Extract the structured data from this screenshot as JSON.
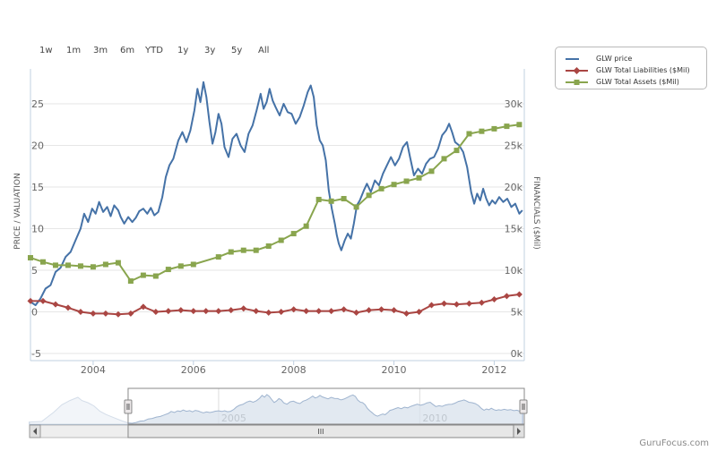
{
  "range_selector": {
    "buttons": [
      "1w",
      "1m",
      "3m",
      "6m",
      "YTD",
      "1y",
      "3y",
      "5y",
      "All"
    ]
  },
  "legend": {
    "items": [
      {
        "label": "GLW price",
        "color": "#4572a7",
        "marker": "none"
      },
      {
        "label": "GLW Total Liabilities ($Mil)",
        "color": "#aa4643",
        "marker": "diamond"
      },
      {
        "label": "GLW Total Assets ($Mil)",
        "color": "#89a54e",
        "marker": "square"
      }
    ]
  },
  "watermark": "GuruFocus.com",
  "chart_data": {
    "type": "line",
    "title": "",
    "xlabel": "",
    "ylabel_left": "PRICE / VALUATION",
    "ylabel_right": "FINANCIALS ($Mil)",
    "x_range": [
      2002.75,
      2012.6
    ],
    "x_ticks": [
      "2004",
      "2006",
      "2008",
      "2010",
      "2012"
    ],
    "y_left": {
      "range": [
        -5,
        30
      ],
      "ticks": [
        "-5",
        "0",
        "5",
        "10",
        "15",
        "20",
        "25"
      ]
    },
    "y_right": {
      "range": [
        0,
        32000
      ],
      "ticks": [
        "0k",
        "5k",
        "10k",
        "15k",
        "20k",
        "25k",
        "30k"
      ]
    },
    "grid": true,
    "legend_position": "top-right",
    "series": [
      {
        "name": "GLW price",
        "axis": "left",
        "color": "#4572a7",
        "marker": "none",
        "points": [
          [
            2002.75,
            1.2
          ],
          [
            2002.85,
            0.8
          ],
          [
            2002.95,
            1.6
          ],
          [
            2003.05,
            2.8
          ],
          [
            2003.15,
            3.2
          ],
          [
            2003.25,
            4.8
          ],
          [
            2003.35,
            5.3
          ],
          [
            2003.45,
            6.6
          ],
          [
            2003.55,
            7.2
          ],
          [
            2003.65,
            8.6
          ],
          [
            2003.75,
            10.0
          ],
          [
            2003.82,
            11.8
          ],
          [
            2003.9,
            10.8
          ],
          [
            2003.98,
            12.4
          ],
          [
            2004.05,
            11.8
          ],
          [
            2004.12,
            13.2
          ],
          [
            2004.2,
            12.0
          ],
          [
            2004.28,
            12.6
          ],
          [
            2004.35,
            11.5
          ],
          [
            2004.42,
            12.8
          ],
          [
            2004.5,
            12.2
          ],
          [
            2004.55,
            11.4
          ],
          [
            2004.62,
            10.6
          ],
          [
            2004.7,
            11.4
          ],
          [
            2004.78,
            10.8
          ],
          [
            2004.85,
            11.3
          ],
          [
            2004.92,
            12.1
          ],
          [
            2005.0,
            12.4
          ],
          [
            2005.08,
            11.8
          ],
          [
            2005.15,
            12.5
          ],
          [
            2005.22,
            11.6
          ],
          [
            2005.3,
            12.0
          ],
          [
            2005.38,
            13.8
          ],
          [
            2005.45,
            16.2
          ],
          [
            2005.52,
            17.6
          ],
          [
            2005.6,
            18.4
          ],
          [
            2005.7,
            20.6
          ],
          [
            2005.78,
            21.6
          ],
          [
            2005.86,
            20.4
          ],
          [
            2005.94,
            21.8
          ],
          [
            2006.02,
            24.2
          ],
          [
            2006.08,
            26.8
          ],
          [
            2006.14,
            25.2
          ],
          [
            2006.2,
            27.6
          ],
          [
            2006.26,
            25.8
          ],
          [
            2006.32,
            22.8
          ],
          [
            2006.38,
            20.2
          ],
          [
            2006.44,
            21.6
          ],
          [
            2006.5,
            23.8
          ],
          [
            2006.56,
            22.6
          ],
          [
            2006.62,
            19.8
          ],
          [
            2006.7,
            18.6
          ],
          [
            2006.78,
            20.8
          ],
          [
            2006.86,
            21.4
          ],
          [
            2006.94,
            20.0
          ],
          [
            2007.02,
            19.2
          ],
          [
            2007.1,
            21.4
          ],
          [
            2007.18,
            22.4
          ],
          [
            2007.26,
            24.2
          ],
          [
            2007.34,
            26.2
          ],
          [
            2007.4,
            24.4
          ],
          [
            2007.46,
            25.2
          ],
          [
            2007.52,
            26.8
          ],
          [
            2007.58,
            25.4
          ],
          [
            2007.64,
            24.6
          ],
          [
            2007.72,
            23.6
          ],
          [
            2007.8,
            25.0
          ],
          [
            2007.88,
            24.0
          ],
          [
            2007.96,
            23.8
          ],
          [
            2008.04,
            22.6
          ],
          [
            2008.12,
            23.4
          ],
          [
            2008.2,
            24.8
          ],
          [
            2008.28,
            26.4
          ],
          [
            2008.34,
            27.2
          ],
          [
            2008.4,
            25.8
          ],
          [
            2008.46,
            22.4
          ],
          [
            2008.52,
            20.6
          ],
          [
            2008.58,
            20.0
          ],
          [
            2008.64,
            18.2
          ],
          [
            2008.7,
            14.6
          ],
          [
            2008.76,
            12.4
          ],
          [
            2008.82,
            10.6
          ],
          [
            2008.86,
            9.2
          ],
          [
            2008.9,
            8.2
          ],
          [
            2008.95,
            7.4
          ],
          [
            2009.02,
            8.6
          ],
          [
            2009.08,
            9.4
          ],
          [
            2009.14,
            8.8
          ],
          [
            2009.2,
            10.6
          ],
          [
            2009.26,
            12.8
          ],
          [
            2009.32,
            13.4
          ],
          [
            2009.4,
            14.6
          ],
          [
            2009.46,
            15.4
          ],
          [
            2009.54,
            14.4
          ],
          [
            2009.62,
            15.8
          ],
          [
            2009.7,
            15.2
          ],
          [
            2009.78,
            16.6
          ],
          [
            2009.86,
            17.6
          ],
          [
            2009.94,
            18.6
          ],
          [
            2010.02,
            17.6
          ],
          [
            2010.1,
            18.4
          ],
          [
            2010.18,
            19.8
          ],
          [
            2010.26,
            20.4
          ],
          [
            2010.32,
            18.6
          ],
          [
            2010.4,
            16.4
          ],
          [
            2010.48,
            17.2
          ],
          [
            2010.56,
            16.6
          ],
          [
            2010.64,
            17.8
          ],
          [
            2010.72,
            18.4
          ],
          [
            2010.8,
            18.6
          ],
          [
            2010.88,
            19.6
          ],
          [
            2010.96,
            21.2
          ],
          [
            2011.04,
            21.8
          ],
          [
            2011.1,
            22.6
          ],
          [
            2011.16,
            21.6
          ],
          [
            2011.22,
            20.4
          ],
          [
            2011.3,
            20.0
          ],
          [
            2011.38,
            19.2
          ],
          [
            2011.46,
            17.4
          ],
          [
            2011.54,
            14.4
          ],
          [
            2011.6,
            13.0
          ],
          [
            2011.66,
            14.2
          ],
          [
            2011.72,
            13.4
          ],
          [
            2011.78,
            14.8
          ],
          [
            2011.84,
            13.6
          ],
          [
            2011.9,
            12.8
          ],
          [
            2011.96,
            13.4
          ],
          [
            2012.02,
            13.0
          ],
          [
            2012.1,
            13.8
          ],
          [
            2012.18,
            13.2
          ],
          [
            2012.26,
            13.6
          ],
          [
            2012.34,
            12.6
          ],
          [
            2012.42,
            13.0
          ],
          [
            2012.5,
            11.8
          ],
          [
            2012.56,
            12.2
          ]
        ]
      },
      {
        "name": "GLW Total Liabilities ($Mil)",
        "axis": "right",
        "color": "#aa4643",
        "marker": "diamond",
        "points": [
          [
            2002.75,
            6300
          ],
          [
            2003.0,
            6300
          ],
          [
            2003.25,
            5900
          ],
          [
            2003.5,
            5500
          ],
          [
            2003.75,
            5000
          ],
          [
            2004.0,
            4800
          ],
          [
            2004.25,
            4800
          ],
          [
            2004.5,
            4700
          ],
          [
            2004.75,
            4800
          ],
          [
            2005.0,
            5600
          ],
          [
            2005.25,
            5000
          ],
          [
            2005.5,
            5100
          ],
          [
            2005.75,
            5200
          ],
          [
            2006.0,
            5100
          ],
          [
            2006.25,
            5100
          ],
          [
            2006.5,
            5100
          ],
          [
            2006.75,
            5200
          ],
          [
            2007.0,
            5400
          ],
          [
            2007.25,
            5100
          ],
          [
            2007.5,
            4900
          ],
          [
            2007.75,
            5000
          ],
          [
            2008.0,
            5300
          ],
          [
            2008.25,
            5100
          ],
          [
            2008.5,
            5100
          ],
          [
            2008.75,
            5100
          ],
          [
            2009.0,
            5300
          ],
          [
            2009.25,
            4900
          ],
          [
            2009.5,
            5200
          ],
          [
            2009.75,
            5300
          ],
          [
            2010.0,
            5200
          ],
          [
            2010.25,
            4800
          ],
          [
            2010.5,
            5000
          ],
          [
            2010.75,
            5800
          ],
          [
            2011.0,
            6000
          ],
          [
            2011.25,
            5900
          ],
          [
            2011.5,
            6000
          ],
          [
            2011.75,
            6100
          ],
          [
            2012.0,
            6500
          ],
          [
            2012.25,
            6900
          ],
          [
            2012.5,
            7100
          ]
        ]
      },
      {
        "name": "GLW Total Assets ($Mil)",
        "axis": "right",
        "color": "#89a54e",
        "marker": "square",
        "points": [
          [
            2002.75,
            11500
          ],
          [
            2003.0,
            11000
          ],
          [
            2003.25,
            10600
          ],
          [
            2003.5,
            10600
          ],
          [
            2003.75,
            10500
          ],
          [
            2004.0,
            10400
          ],
          [
            2004.25,
            10700
          ],
          [
            2004.5,
            10900
          ],
          [
            2004.75,
            8700
          ],
          [
            2005.0,
            9400
          ],
          [
            2005.25,
            9300
          ],
          [
            2005.5,
            10100
          ],
          [
            2005.75,
            10500
          ],
          [
            2006.0,
            10700
          ],
          [
            2006.5,
            11600
          ],
          [
            2006.75,
            12200
          ],
          [
            2007.0,
            12400
          ],
          [
            2007.25,
            12400
          ],
          [
            2007.5,
            12900
          ],
          [
            2007.75,
            13600
          ],
          [
            2008.0,
            14400
          ],
          [
            2008.25,
            15300
          ],
          [
            2008.5,
            18500
          ],
          [
            2008.75,
            18300
          ],
          [
            2009.0,
            18600
          ],
          [
            2009.25,
            17600
          ],
          [
            2009.5,
            19000
          ],
          [
            2009.75,
            19800
          ],
          [
            2010.0,
            20300
          ],
          [
            2010.25,
            20700
          ],
          [
            2010.5,
            21100
          ],
          [
            2010.75,
            21900
          ],
          [
            2011.0,
            23400
          ],
          [
            2011.25,
            24400
          ],
          [
            2011.5,
            26400
          ],
          [
            2011.75,
            26700
          ],
          [
            2012.0,
            27000
          ],
          [
            2012.25,
            27300
          ],
          [
            2012.5,
            27500
          ]
        ]
      }
    ]
  },
  "navigator": {
    "x_labels": [
      "2005",
      "2010"
    ],
    "x_range": [
      2000.3,
      2012.6
    ],
    "selected_range": [
      2002.75,
      2012.6
    ],
    "scrollbar_grip": "III"
  }
}
